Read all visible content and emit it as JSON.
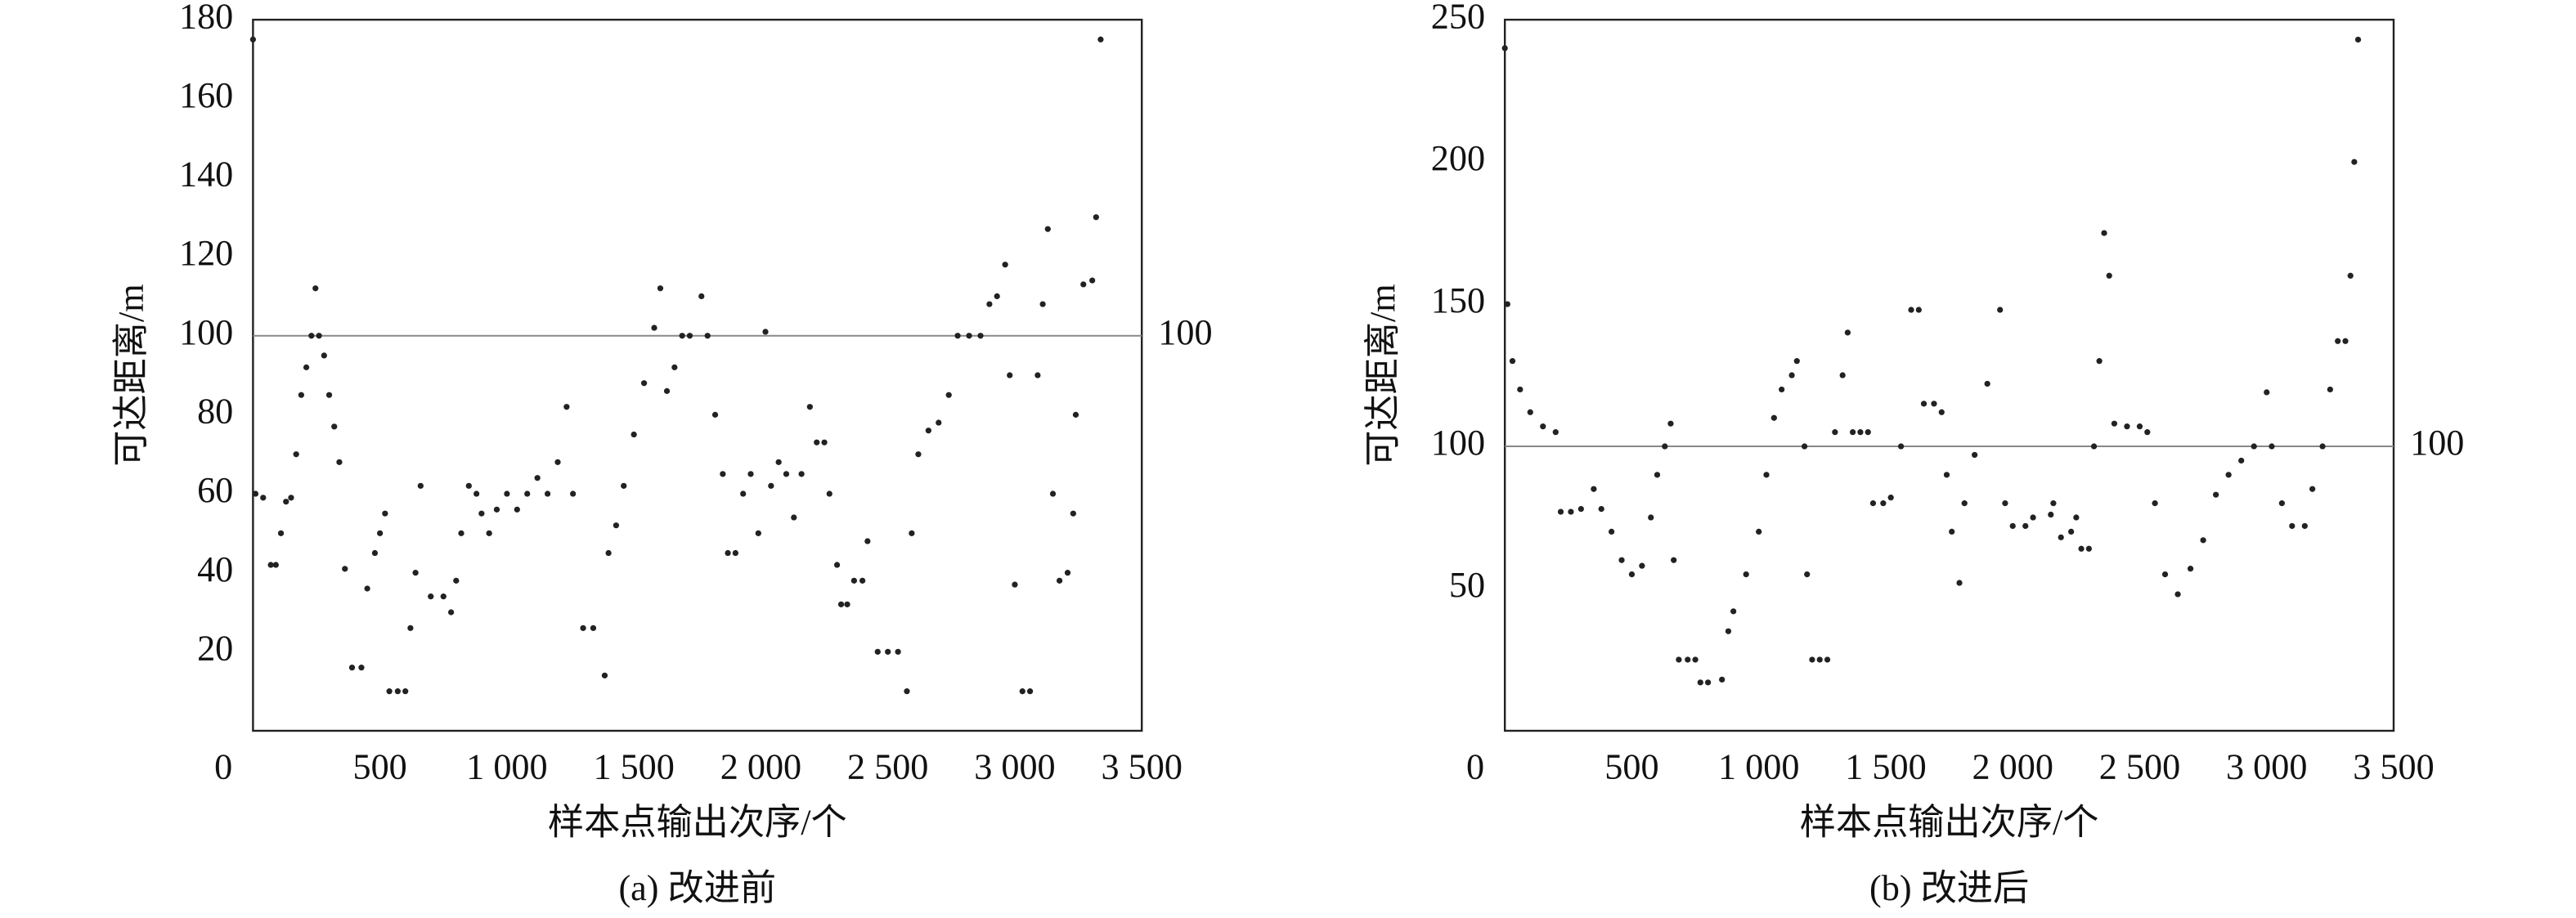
{
  "chart_data": [
    {
      "type": "scatter",
      "caption": "(a) 改进前",
      "xlabel": "样本点输出次序/个",
      "ylabel": "可达距离/m",
      "color": "#222222",
      "xlim": [
        0,
        3500
      ],
      "ylim": [
        0,
        180
      ],
      "xticks": [
        0,
        500,
        {
          "value": 1000,
          "label": "1 000"
        },
        {
          "value": 1500,
          "label": "1 500"
        },
        {
          "value": 2000,
          "label": "2 000"
        },
        {
          "value": 2500,
          "label": "2 500"
        },
        {
          "value": 3000,
          "label": "3 000"
        },
        {
          "value": 3500,
          "label": "3 500"
        }
      ],
      "yticks": [
        20,
        40,
        60,
        80,
        100,
        120,
        140,
        160,
        180
      ],
      "hline": 100,
      "x": [
        0,
        10,
        40,
        70,
        90,
        110,
        130,
        150,
        170,
        190,
        210,
        230,
        246,
        260,
        280,
        300,
        320,
        340,
        362,
        390,
        427,
        450,
        480,
        500,
        520,
        537,
        570,
        600,
        620,
        640,
        660,
        700,
        750,
        780,
        800,
        820,
        850,
        880,
        900,
        930,
        960,
        1000,
        1040,
        1080,
        1120,
        1160,
        1200,
        1235,
        1260,
        1300,
        1340,
        1385,
        1400,
        1430,
        1460,
        1500,
        1540,
        1580,
        1604,
        1630,
        1660,
        1690,
        1720,
        1766,
        1790,
        1820,
        1850,
        1870,
        1900,
        1930,
        1960,
        1990,
        2018,
        2040,
        2070,
        2100,
        2130,
        2160,
        2193,
        2220,
        2250,
        2270,
        2300,
        2316,
        2340,
        2367,
        2400,
        2420,
        2460,
        2500,
        2540,
        2575,
        2594,
        2620,
        2660,
        2700,
        2740,
        2775,
        2820,
        2865,
        2900,
        2930,
        2962,
        2980,
        3000,
        3030,
        3060,
        3090,
        3110,
        3130,
        3150,
        3176,
        3208,
        3230,
        3240,
        3270,
        3305,
        3320,
        3338
      ],
      "y": [
        175,
        60,
        59,
        42,
        42,
        50,
        58,
        59,
        70,
        85,
        92,
        100,
        112,
        100,
        95,
        85,
        77,
        68,
        41,
        16,
        16,
        36,
        45,
        50,
        55,
        10,
        10,
        10,
        26,
        40,
        62,
        34,
        34,
        30,
        38,
        50,
        62,
        60,
        55,
        50,
        56,
        60,
        56,
        60,
        64,
        60,
        68,
        82,
        60,
        26,
        26,
        14,
        45,
        52,
        62,
        75,
        88,
        102,
        112,
        86,
        92,
        100,
        100,
        110,
        100,
        80,
        65,
        45,
        45,
        60,
        65,
        50,
        101,
        62,
        68,
        65,
        54,
        65,
        82,
        73,
        73,
        60,
        42,
        32,
        32,
        38,
        38,
        48,
        20,
        20,
        20,
        10,
        50,
        70,
        76,
        78,
        85,
        100,
        100,
        100,
        108,
        110,
        118,
        90,
        37,
        10,
        10,
        90,
        108,
        127,
        60,
        38,
        40,
        55,
        80,
        113,
        114,
        130,
        175
      ]
    },
    {
      "type": "scatter",
      "caption": "(b) 改进后",
      "xlabel": "样本点输出次序/个",
      "ylabel": "可达距离/m",
      "color": "#222222",
      "xlim": [
        0,
        3500
      ],
      "ylim": [
        0,
        250
      ],
      "xticks": [
        0,
        500,
        {
          "value": 1000,
          "label": "1 000"
        },
        {
          "value": 1500,
          "label": "1 500"
        },
        {
          "value": 2000,
          "label": "2 000"
        },
        {
          "value": 2500,
          "label": "2 500"
        },
        {
          "value": 3000,
          "label": "3 000"
        },
        {
          "value": 3500,
          "label": "3 500"
        }
      ],
      "yticks": [
        50,
        100,
        150,
        200,
        250
      ],
      "hline": 100,
      "x": [
        0,
        10,
        30,
        60,
        100,
        150,
        200,
        220,
        260,
        300,
        350,
        380,
        420,
        460,
        500,
        540,
        575,
        600,
        630,
        653,
        665,
        685,
        720,
        750,
        770,
        800,
        855,
        880,
        900,
        950,
        1000,
        1030,
        1060,
        1090,
        1130,
        1150,
        1180,
        1190,
        1210,
        1240,
        1270,
        1300,
        1330,
        1350,
        1370,
        1400,
        1430,
        1450,
        1490,
        1520,
        1560,
        1600,
        1630,
        1650,
        1690,
        1720,
        1740,
        1760,
        1790,
        1810,
        1850,
        1900,
        1950,
        1970,
        2000,
        2050,
        2080,
        2150,
        2160,
        2190,
        2230,
        2250,
        2270,
        2300,
        2320,
        2341,
        2360,
        2380,
        2400,
        2450,
        2500,
        2530,
        2560,
        2600,
        2650,
        2700,
        2750,
        2800,
        2850,
        2900,
        2950,
        3000,
        3020,
        3060,
        3100,
        3150,
        3180,
        3220,
        3250,
        3280,
        3310,
        3330,
        3345,
        3360
      ],
      "y": [
        240,
        150,
        130,
        120,
        112,
        107,
        105,
        77,
        77,
        78,
        85,
        78,
        70,
        60,
        55,
        58,
        75,
        90,
        100,
        108,
        60,
        25,
        25,
        25,
        17,
        17,
        18,
        35,
        42,
        55,
        70,
        90,
        110,
        120,
        125,
        130,
        100,
        55,
        25,
        25,
        25,
        105,
        125,
        140,
        105,
        105,
        105,
        80,
        80,
        82,
        100,
        148,
        148,
        115,
        115,
        112,
        90,
        70,
        52,
        80,
        97,
        122,
        148,
        80,
        72,
        72,
        75,
        76,
        80,
        68,
        70,
        75,
        64,
        64,
        100,
        130,
        175,
        160,
        108,
        107,
        107,
        105,
        80,
        55,
        48,
        57,
        67,
        83,
        90,
        95,
        100,
        119,
        100,
        80,
        72,
        72,
        85,
        100,
        120,
        137,
        137,
        160,
        200,
        243
      ]
    }
  ]
}
